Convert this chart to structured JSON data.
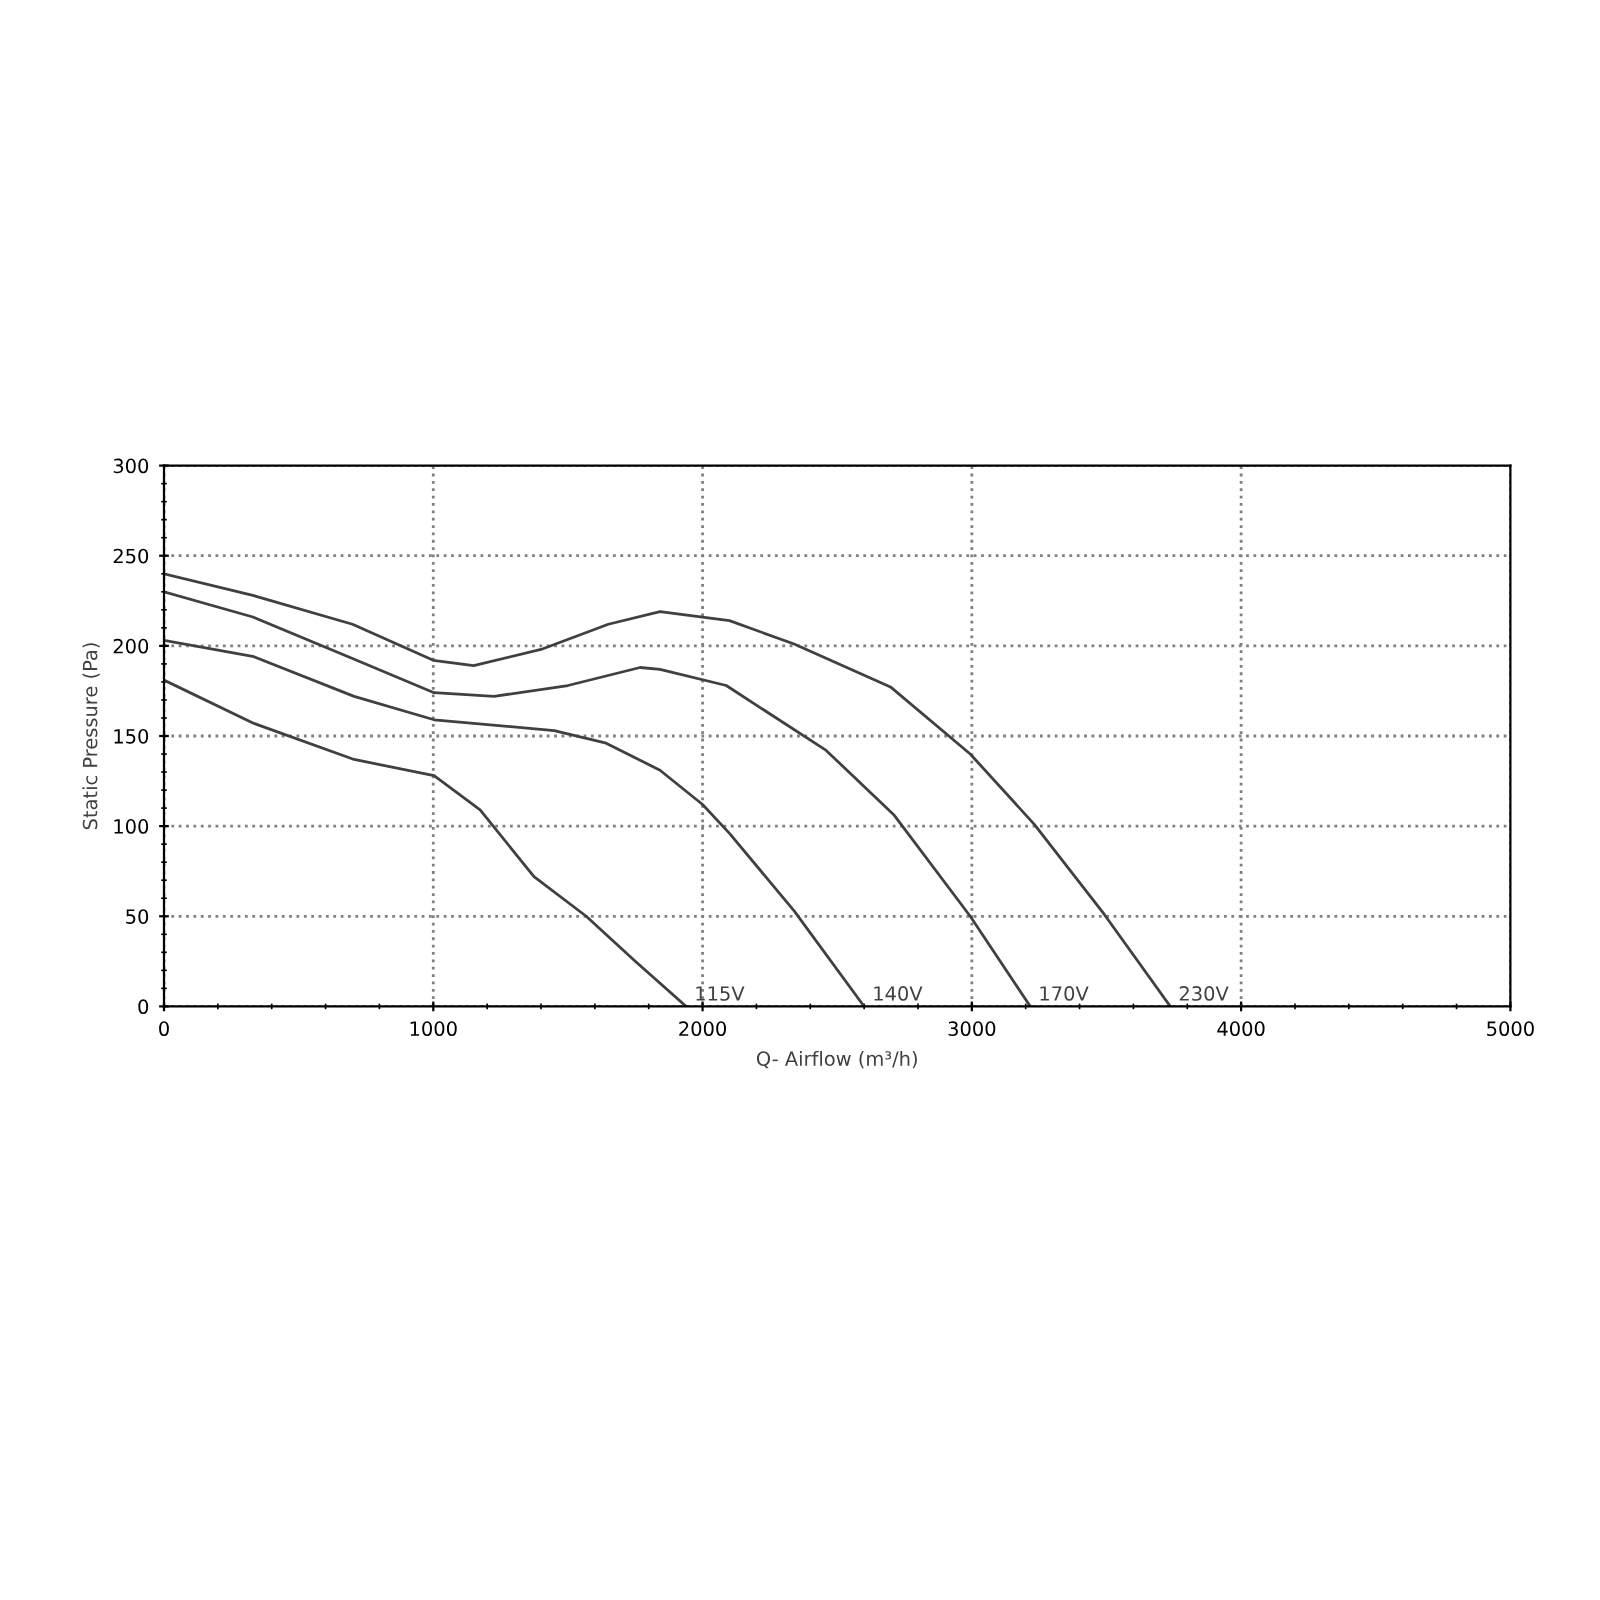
{
  "chart_data": {
    "type": "line",
    "xlabel": "Q- Airflow (m³/h)",
    "ylabel": "Static Pressure (Pa)",
    "xlim": [
      0,
      5000
    ],
    "xticks": [
      0,
      1000,
      2000,
      3000,
      4000,
      5000
    ],
    "ylim": [
      0,
      300
    ],
    "yticks": [
      0,
      50,
      100,
      150,
      200,
      250,
      300
    ],
    "grid": true,
    "line_style": "solid",
    "marker": "none",
    "series": [
      {
        "name": "230V",
        "color": "#404040",
        "x": [
          0,
          330,
          700,
          1000,
          1150,
          1400,
          1650,
          1842,
          2100,
          2340,
          2700,
          2994,
          3232,
          3492,
          3737
        ],
        "values": [
          240,
          228,
          212,
          192,
          189,
          198,
          212,
          219,
          214,
          201,
          177,
          140,
          101,
          51,
          0
        ]
      },
      {
        "name": "170V",
        "color": "#404040",
        "x": [
          0,
          330,
          700,
          1003,
          1226,
          1500,
          1768,
          1842,
          2088,
          2459,
          2712,
          2994,
          3217
        ],
        "values": [
          230,
          216,
          193,
          174,
          172,
          178,
          188,
          187,
          178,
          142,
          106,
          50,
          0
        ]
      },
      {
        "name": "140V",
        "color": "#404040",
        "x": [
          0,
          334,
          706,
          1003,
          1449,
          1642,
          1842,
          2000,
          2100,
          2340,
          2600
        ],
        "values": [
          203,
          194,
          172,
          159,
          153,
          146,
          131,
          112,
          96,
          53,
          0
        ]
      },
      {
        "name": "115V",
        "color": "#404040",
        "x": [
          0,
          334,
          706,
          1003,
          1174,
          1374,
          1568,
          1750,
          1939
        ],
        "values": [
          181,
          157,
          137,
          128,
          109,
          72,
          50,
          25,
          0
        ]
      }
    ]
  }
}
